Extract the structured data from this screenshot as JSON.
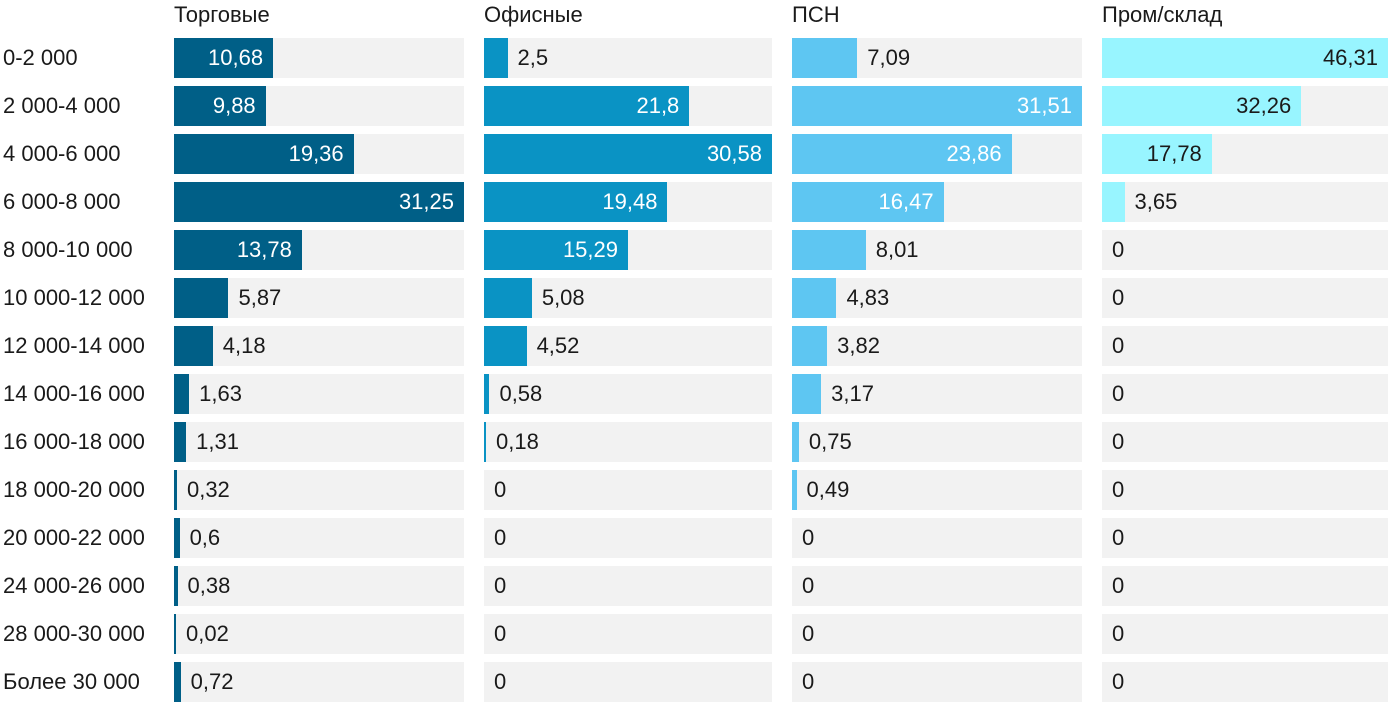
{
  "chart_data": {
    "type": "bar",
    "orientation": "horizontal",
    "layout": "small-multiples",
    "categories": [
      "0-2 000",
      "2 000-4 000",
      "4 000-6 000",
      "6 000-8 000",
      "8 000-10 000",
      "10 000-12 000",
      "12 000-14 000",
      "14 000-16 000",
      "16 000-18 000",
      "18 000-20 000",
      "20 000-22 000",
      "24 000-26 000",
      "28 000-30 000",
      "Более 30 000"
    ],
    "series": [
      {
        "name": "Торговые",
        "color": "#005f87",
        "max": 31.25,
        "values": [
          10.68,
          9.88,
          19.36,
          31.25,
          13.78,
          5.87,
          4.18,
          1.63,
          1.31,
          0.32,
          0.6,
          0.38,
          0.02,
          0.72
        ],
        "labels": [
          "10,68",
          "9,88",
          "19,36",
          "31,25",
          "13,78",
          "5,87",
          "4,18",
          "1,63",
          "1,31",
          "0,32",
          "0,6",
          "0,38",
          "0,02",
          "0,72"
        ]
      },
      {
        "name": "Офисные",
        "color": "#0a93c4",
        "max": 30.58,
        "values": [
          2.5,
          21.8,
          30.58,
          19.48,
          15.29,
          5.08,
          4.52,
          0.58,
          0.18,
          0,
          0,
          0,
          0,
          0
        ],
        "labels": [
          "2,5",
          "21,8",
          "30,58",
          "19,48",
          "15,29",
          "5,08",
          "4,52",
          "0,58",
          "0,18",
          "0",
          "0",
          "0",
          "0",
          "0"
        ]
      },
      {
        "name": "ПСН",
        "color": "#5ec6f2",
        "max": 31.51,
        "values": [
          7.09,
          31.51,
          23.86,
          16.47,
          8.01,
          4.83,
          3.82,
          3.17,
          0.75,
          0.49,
          0,
          0,
          0,
          0
        ],
        "labels": [
          "7,09",
          "31,51",
          "23,86",
          "16,47",
          "8,01",
          "4,83",
          "3,82",
          "3,17",
          "0,75",
          "0,49",
          "0",
          "0",
          "0",
          "0"
        ]
      },
      {
        "name": "Пром/склад",
        "color": "#98f5ff",
        "max": 46.31,
        "values": [
          46.31,
          32.26,
          17.78,
          3.65,
          0,
          0,
          0,
          0,
          0,
          0,
          0,
          0,
          0,
          0
        ],
        "labels": [
          "46,31",
          "32,26",
          "17,78",
          "3,65",
          "0",
          "0",
          "0",
          "0",
          "0",
          "0",
          "0",
          "0",
          "0",
          "0"
        ]
      }
    ],
    "track_color": "#f2f2f2",
    "grid": false,
    "legend": "none"
  }
}
